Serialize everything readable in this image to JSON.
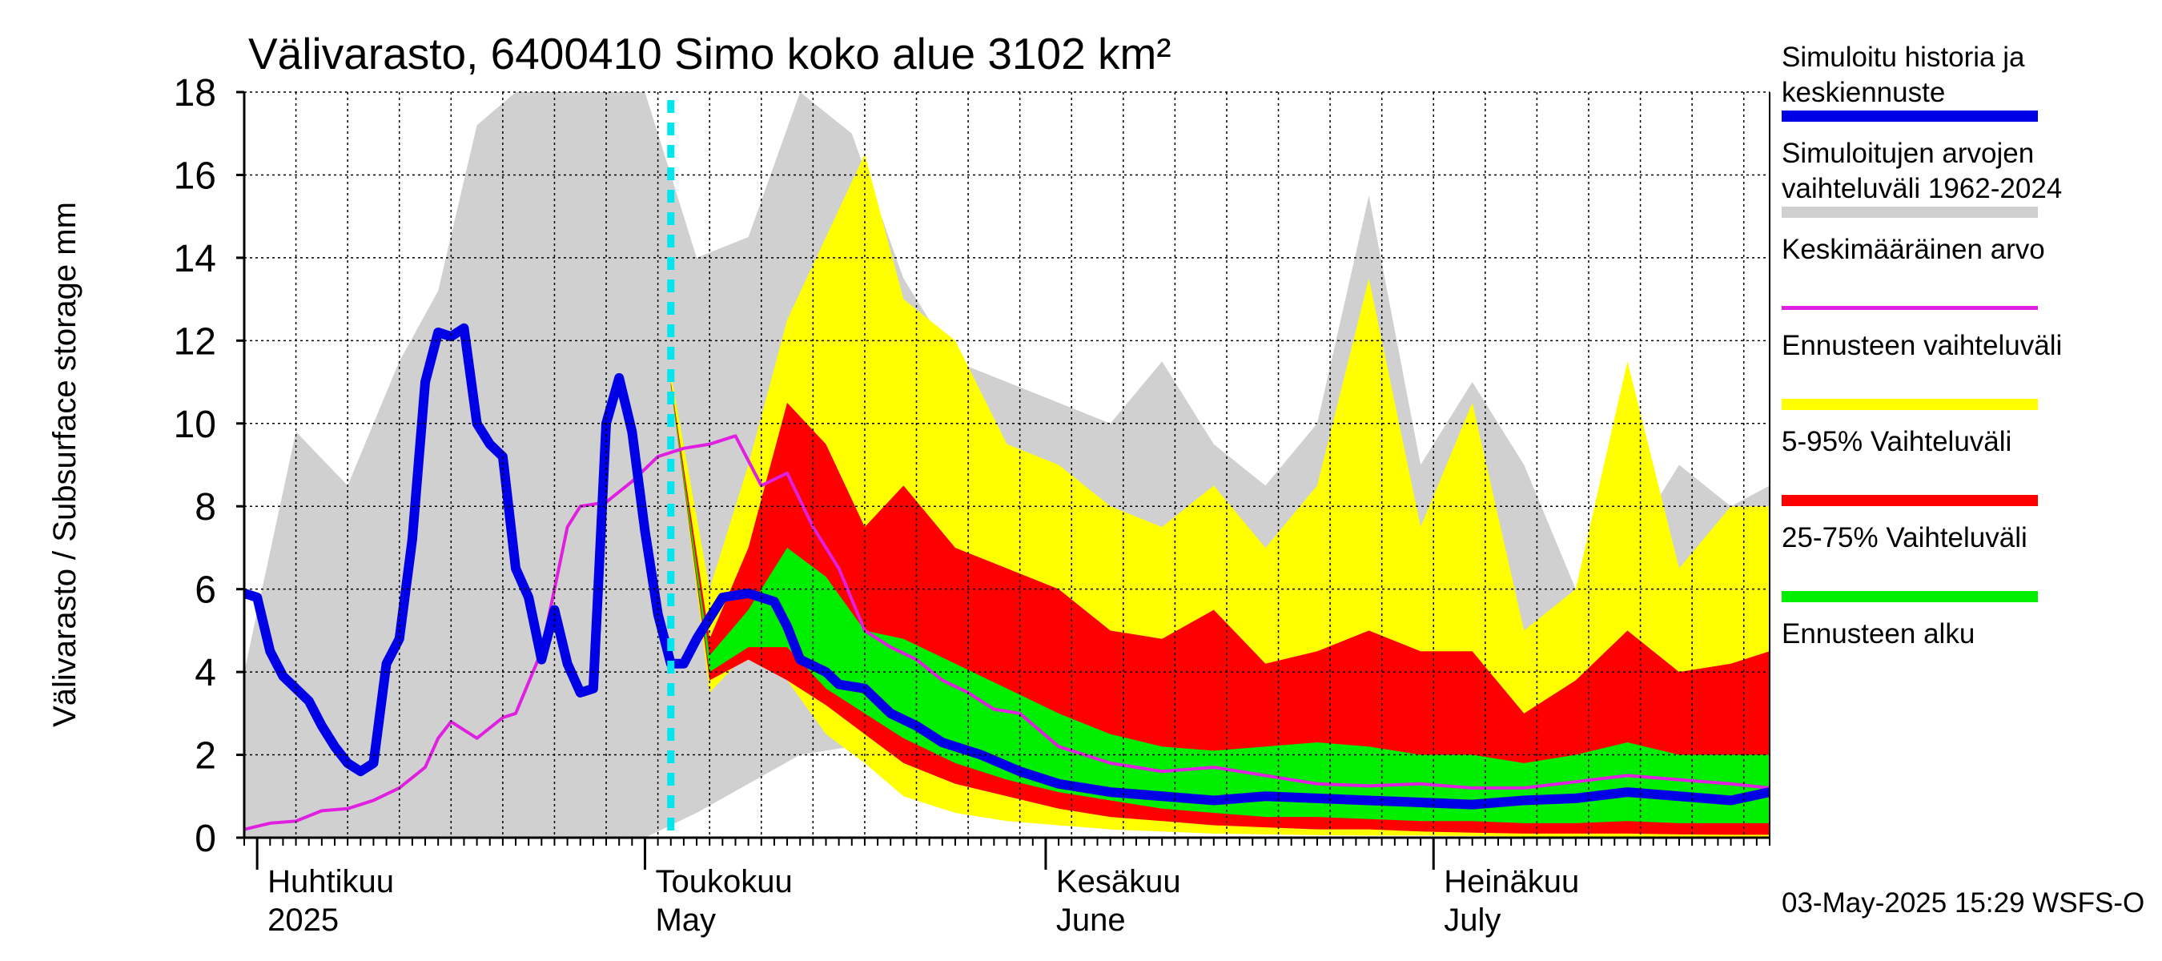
{
  "chart_data": {
    "type": "area",
    "title": "Välivarasto, 6400410 Simo koko alue 3102 km²",
    "ylabel": "Välivarasto / Subsurface storage  mm",
    "ylim": [
      0,
      18
    ],
    "yticks": [
      0,
      2,
      4,
      6,
      8,
      10,
      12,
      14,
      16,
      18
    ],
    "grid": true,
    "legend_position": "right",
    "forecast_start": "2025-05-03",
    "month_labels": [
      {
        "date": "2025-04-01",
        "fi": "Huhtikuu",
        "en": "2025"
      },
      {
        "date": "2025-05-01",
        "fi": "Toukokuu",
        "en": "May"
      },
      {
        "date": "2025-06-01",
        "fi": "Kesäkuu",
        "en": "June"
      },
      {
        "date": "2025-07-01",
        "fi": "Heinäkuu",
        "en": "July"
      }
    ],
    "series": [
      {
        "name": "Simuloitujen arvojen vaihteluväli 1962-2024",
        "color": "#d0d0d0",
        "x": [
          "2025-03-31",
          "2025-04-04",
          "2025-04-08",
          "2025-04-12",
          "2025-04-15",
          "2025-04-18",
          "2025-04-21",
          "2025-04-24",
          "2025-04-28",
          "2025-05-01",
          "2025-05-05",
          "2025-05-09",
          "2025-05-13",
          "2025-05-17",
          "2025-05-21",
          "2025-05-25",
          "2025-05-29",
          "2025-06-02",
          "2025-06-06",
          "2025-06-10",
          "2025-06-14",
          "2025-06-18",
          "2025-06-22",
          "2025-06-26",
          "2025-06-30",
          "2025-07-04",
          "2025-07-08",
          "2025-07-12",
          "2025-07-16",
          "2025-07-20",
          "2025-07-24",
          "2025-07-27"
        ],
        "upper": [
          4.0,
          9.8,
          8.5,
          11.5,
          13.2,
          17.2,
          18,
          18,
          18,
          18,
          14.0,
          14.5,
          18,
          17.0,
          13.5,
          11.5,
          11.0,
          10.5,
          10.0,
          11.5,
          9.5,
          8.5,
          10.0,
          15.5,
          9.0,
          11.0,
          9.0,
          6.0,
          7.0,
          9.0,
          8.0,
          8.5
        ],
        "lower": [
          0,
          0,
          0,
          0,
          0,
          0,
          0,
          0,
          0,
          0,
          0.6,
          1.3,
          2.0,
          2.2,
          1.8,
          1.2,
          0.8,
          0.5,
          0.3,
          0.2,
          0.15,
          0.1,
          0.1,
          0.08,
          0.06,
          0.05,
          0.04,
          0.03,
          0.03,
          0.02,
          0.02,
          0.02
        ]
      },
      {
        "name": "Ennusteen vaihteluväli",
        "color": "#ffff00",
        "x": [
          "2025-05-03",
          "2025-05-06",
          "2025-05-09",
          "2025-05-12",
          "2025-05-15",
          "2025-05-18",
          "2025-05-21",
          "2025-05-25",
          "2025-05-29",
          "2025-06-02",
          "2025-06-06",
          "2025-06-10",
          "2025-06-14",
          "2025-06-18",
          "2025-06-22",
          "2025-06-26",
          "2025-06-30",
          "2025-07-04",
          "2025-07-08",
          "2025-07-12",
          "2025-07-16",
          "2025-07-20",
          "2025-07-24",
          "2025-07-27"
        ],
        "upper": [
          11.2,
          6.0,
          9.0,
          12.5,
          14.5,
          16.5,
          13.0,
          12.0,
          9.5,
          9.0,
          8.0,
          7.5,
          8.5,
          7.0,
          8.5,
          13.5,
          7.5,
          10.5,
          5.0,
          6.0,
          11.5,
          6.5,
          8.0,
          8.0
        ],
        "lower": [
          11.0,
          3.5,
          4.5,
          3.8,
          2.5,
          1.8,
          1.0,
          0.6,
          0.4,
          0.3,
          0.2,
          0.15,
          0.1,
          0.08,
          0.06,
          0.05,
          0.05,
          0.04,
          0.03,
          0.03,
          0.03,
          0.02,
          0.02,
          0.02
        ]
      },
      {
        "name": "5-95% Vaihteluväli",
        "color": "#ff0000",
        "x": [
          "2025-05-03",
          "2025-05-06",
          "2025-05-09",
          "2025-05-12",
          "2025-05-15",
          "2025-05-18",
          "2025-05-21",
          "2025-05-25",
          "2025-05-29",
          "2025-06-02",
          "2025-06-06",
          "2025-06-10",
          "2025-06-14",
          "2025-06-18",
          "2025-06-22",
          "2025-06-26",
          "2025-06-30",
          "2025-07-04",
          "2025-07-08",
          "2025-07-12",
          "2025-07-16",
          "2025-07-20",
          "2025-07-24",
          "2025-07-27"
        ],
        "upper": [
          11.0,
          4.8,
          7.0,
          10.5,
          9.5,
          7.5,
          8.5,
          7.0,
          6.5,
          6.0,
          5.0,
          4.8,
          5.5,
          4.2,
          4.5,
          5.0,
          4.5,
          4.5,
          3.0,
          3.8,
          5.0,
          4.0,
          4.2,
          4.5
        ],
        "lower": [
          10.9,
          3.8,
          4.3,
          3.8,
          3.2,
          2.5,
          1.8,
          1.3,
          1.0,
          0.7,
          0.5,
          0.4,
          0.3,
          0.25,
          0.2,
          0.2,
          0.15,
          0.12,
          0.1,
          0.1,
          0.1,
          0.08,
          0.07,
          0.07
        ]
      },
      {
        "name": "25-75% Vaihteluväli",
        "color": "#00ee00",
        "x": [
          "2025-05-03",
          "2025-05-06",
          "2025-05-09",
          "2025-05-12",
          "2025-05-15",
          "2025-05-18",
          "2025-05-21",
          "2025-05-25",
          "2025-05-29",
          "2025-06-02",
          "2025-06-06",
          "2025-06-10",
          "2025-06-14",
          "2025-06-18",
          "2025-06-22",
          "2025-06-26",
          "2025-06-30",
          "2025-07-04",
          "2025-07-08",
          "2025-07-12",
          "2025-07-16",
          "2025-07-20",
          "2025-07-24",
          "2025-07-27"
        ],
        "upper": [
          10.95,
          4.4,
          5.5,
          7.0,
          6.3,
          5.0,
          4.8,
          4.2,
          3.6,
          3.0,
          2.5,
          2.2,
          2.1,
          2.2,
          2.3,
          2.2,
          2.0,
          2.0,
          1.8,
          2.0,
          2.3,
          2.0,
          2.0,
          2.0
        ],
        "lower": [
          10.9,
          4.0,
          4.6,
          4.6,
          3.6,
          3.0,
          2.4,
          1.8,
          1.4,
          1.1,
          0.9,
          0.7,
          0.6,
          0.5,
          0.5,
          0.45,
          0.4,
          0.4,
          0.35,
          0.35,
          0.4,
          0.35,
          0.35,
          0.35
        ]
      },
      {
        "name": "Keskimääräinen arvo",
        "color": "#e020e0",
        "x": [
          "2025-03-31",
          "2025-04-02",
          "2025-04-04",
          "2025-04-06",
          "2025-04-08",
          "2025-04-10",
          "2025-04-12",
          "2025-04-14",
          "2025-04-15",
          "2025-04-16",
          "2025-04-18",
          "2025-04-20",
          "2025-04-21",
          "2025-04-23",
          "2025-04-24",
          "2025-04-25",
          "2025-04-26",
          "2025-04-28",
          "2025-04-30",
          "2025-05-02",
          "2025-05-04",
          "2025-05-06",
          "2025-05-08",
          "2025-05-10",
          "2025-05-12",
          "2025-05-14",
          "2025-05-16",
          "2025-05-18",
          "2025-05-20",
          "2025-05-22",
          "2025-05-24",
          "2025-05-26",
          "2025-05-28",
          "2025-05-30",
          "2025-06-02",
          "2025-06-06",
          "2025-06-10",
          "2025-06-14",
          "2025-06-18",
          "2025-06-22",
          "2025-06-26",
          "2025-06-30",
          "2025-07-04",
          "2025-07-08",
          "2025-07-12",
          "2025-07-16",
          "2025-07-20",
          "2025-07-24",
          "2025-07-27"
        ],
        "values": [
          0.2,
          0.35,
          0.4,
          0.65,
          0.7,
          0.9,
          1.2,
          1.7,
          2.4,
          2.8,
          2.4,
          2.9,
          3.0,
          4.5,
          6.0,
          7.5,
          8.0,
          8.1,
          8.6,
          9.2,
          9.4,
          9.5,
          9.7,
          8.5,
          8.8,
          7.5,
          6.5,
          5.0,
          4.6,
          4.3,
          3.8,
          3.5,
          3.1,
          3.0,
          2.2,
          1.8,
          1.6,
          1.7,
          1.5,
          1.3,
          1.25,
          1.3,
          1.2,
          1.2,
          1.35,
          1.5,
          1.4,
          1.3,
          1.2
        ]
      },
      {
        "name": "Simuloitu historia ja keskiennuste",
        "color": "#0000e6",
        "x": [
          "2025-03-31",
          "2025-04-01",
          "2025-04-02",
          "2025-04-03",
          "2025-04-05",
          "2025-04-06",
          "2025-04-07",
          "2025-04-08",
          "2025-04-09",
          "2025-04-10",
          "2025-04-11",
          "2025-04-12",
          "2025-04-13",
          "2025-04-14",
          "2025-04-15",
          "2025-04-16",
          "2025-04-17",
          "2025-04-18",
          "2025-04-19",
          "2025-04-20",
          "2025-04-21",
          "2025-04-22",
          "2025-04-23",
          "2025-04-24",
          "2025-04-25",
          "2025-04-26",
          "2025-04-27",
          "2025-04-28",
          "2025-04-29",
          "2025-04-30",
          "2025-05-01",
          "2025-05-02",
          "2025-05-03",
          "2025-05-04",
          "2025-05-05",
          "2025-05-06",
          "2025-05-07",
          "2025-05-09",
          "2025-05-11",
          "2025-05-12",
          "2025-05-13",
          "2025-05-15",
          "2025-05-16",
          "2025-05-18",
          "2025-05-20",
          "2025-05-22",
          "2025-05-24",
          "2025-05-27",
          "2025-05-30",
          "2025-06-02",
          "2025-06-06",
          "2025-06-10",
          "2025-06-14",
          "2025-06-18",
          "2025-06-22",
          "2025-06-26",
          "2025-06-30",
          "2025-07-04",
          "2025-07-08",
          "2025-07-12",
          "2025-07-16",
          "2025-07-20",
          "2025-07-24",
          "2025-07-27"
        ],
        "values": [
          5.9,
          5.8,
          4.5,
          3.9,
          3.3,
          2.7,
          2.2,
          1.8,
          1.6,
          1.8,
          4.2,
          4.8,
          7.2,
          11.0,
          12.2,
          12.1,
          12.3,
          10.0,
          9.5,
          9.2,
          6.5,
          5.8,
          4.3,
          5.5,
          4.2,
          3.5,
          3.6,
          10.0,
          11.1,
          9.8,
          7.4,
          5.4,
          4.2,
          4.2,
          4.8,
          5.3,
          5.8,
          5.9,
          5.7,
          5.1,
          4.3,
          4.0,
          3.7,
          3.6,
          3.0,
          2.7,
          2.3,
          2.0,
          1.6,
          1.3,
          1.1,
          1.0,
          0.9,
          1.0,
          0.95,
          0.9,
          0.85,
          0.8,
          0.9,
          0.95,
          1.1,
          1.0,
          0.9,
          1.1
        ]
      }
    ]
  },
  "title": "Välivarasto, 6400410 Simo koko alue 3102 km²",
  "legend": [
    {
      "label": "Simuloitu historia ja\nkeskiennuste",
      "color": "#0000e6",
      "style": "thick"
    },
    {
      "label": "Simuloitujen arvojen\nvaihteluväli 1962-2024",
      "color": "#d0d0d0",
      "style": "thick"
    },
    {
      "label": "Keskimääräinen arvo",
      "color": "#e020e0",
      "style": "thin"
    },
    {
      "label": "Ennusteen vaihteluväli",
      "color": "#ffff00",
      "style": "thick"
    },
    {
      "label": "5-95% Vaihteluväli",
      "color": "#ff0000",
      "style": "thick"
    },
    {
      "label": "25-75% Vaihteluväli",
      "color": "#00ee00",
      "style": "thick"
    },
    {
      "label": "Ennusteen alku",
      "color": "#00e5ee",
      "style": "dashed"
    }
  ],
  "footer": "03-May-2025 15:29 WSFS-O"
}
